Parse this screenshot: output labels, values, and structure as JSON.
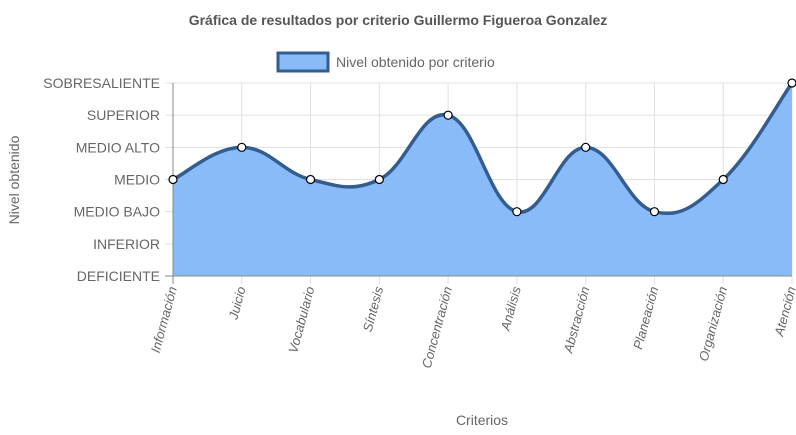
{
  "chart_data": {
    "type": "area",
    "title": "Gráfica de resultados por criterio Guillermo Figueroa Gonzalez",
    "xlabel": "Criterios",
    "ylabel": "Nivel obtenido",
    "categories": [
      "Información",
      "Juicio",
      "Vocabulario",
      "Síntesis",
      "Concentración",
      "Análisis",
      "Abstracción",
      "Planeación",
      "Organización",
      "Atención"
    ],
    "y_levels": [
      "DEFICIENTE",
      "INFERIOR",
      "MEDIO BAJO",
      "MEDIO",
      "MEDIO ALTO",
      "SUPERIOR",
      "SOBRESALIENTE"
    ],
    "ylim": [
      0,
      6
    ],
    "series": [
      {
        "name": "Nivel obtenido por criterio",
        "values": [
          3,
          4,
          3,
          3,
          5,
          2,
          4,
          2,
          3,
          6
        ]
      }
    ],
    "legend": "top",
    "grid": true,
    "colors": {
      "fill": "#8abbf9",
      "line": "#335c8f",
      "grid": "#e0e0e0",
      "axis": "#888888",
      "point_fill": "#ffffff",
      "point_stroke": "#000000"
    }
  }
}
